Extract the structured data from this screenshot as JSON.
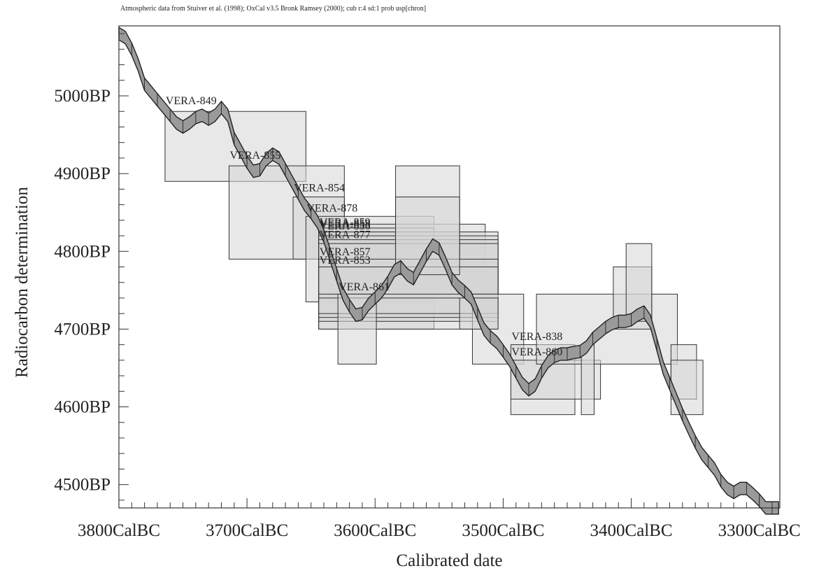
{
  "caption": "Atmospheric data from Stuiver et al. (1998); OxCal v3.5 Bronk Ramsey (2000); cub r:4 sd:1 prob usp[chron]",
  "chart_data": {
    "type": "scatter",
    "title": "",
    "xlabel": "Calibrated date",
    "ylabel": "Radiocarbon determination",
    "xlim": [
      3800,
      3284
    ],
    "ylim": [
      4470,
      5090
    ],
    "x_ticks": [
      {
        "value": 3800,
        "label": "3800CalBC"
      },
      {
        "value": 3700,
        "label": "3700CalBC"
      },
      {
        "value": 3600,
        "label": "3600CalBC"
      },
      {
        "value": 3500,
        "label": "3500CalBC"
      },
      {
        "value": 3400,
        "label": "3400CalBC"
      },
      {
        "value": 3300,
        "label": "3300CalBC"
      }
    ],
    "y_ticks": [
      {
        "value": 5000,
        "label": "5000BP"
      },
      {
        "value": 4900,
        "label": "4900BP"
      },
      {
        "value": 4800,
        "label": "4800BP"
      },
      {
        "value": 4700,
        "label": "4700BP"
      },
      {
        "value": 4600,
        "label": "4600BP"
      },
      {
        "value": 4500,
        "label": "4500BP"
      }
    ],
    "calibration_curve": {
      "x": [
        3800,
        3795,
        3790,
        3785,
        3780,
        3775,
        3770,
        3765,
        3760,
        3755,
        3750,
        3745,
        3740,
        3735,
        3730,
        3725,
        3720,
        3715,
        3710,
        3705,
        3700,
        3695,
        3690,
        3685,
        3680,
        3675,
        3670,
        3665,
        3660,
        3655,
        3650,
        3645,
        3640,
        3635,
        3630,
        3625,
        3620,
        3615,
        3610,
        3605,
        3600,
        3595,
        3590,
        3585,
        3580,
        3575,
        3570,
        3565,
        3560,
        3555,
        3550,
        3545,
        3540,
        3535,
        3530,
        3525,
        3520,
        3515,
        3510,
        3505,
        3500,
        3495,
        3490,
        3485,
        3480,
        3475,
        3470,
        3465,
        3460,
        3455,
        3450,
        3445,
        3440,
        3435,
        3430,
        3425,
        3420,
        3415,
        3410,
        3405,
        3400,
        3395,
        3390,
        3385,
        3380,
        3375,
        3370,
        3365,
        3360,
        3355,
        3350,
        3345,
        3340,
        3335,
        3330,
        3325,
        3320,
        3315,
        3310,
        3305,
        3300,
        3295,
        3290,
        3285
      ],
      "y": [
        5080,
        5075,
        5060,
        5040,
        5015,
        5005,
        4995,
        4985,
        4975,
        4965,
        4960,
        4965,
        4972,
        4975,
        4970,
        4975,
        4985,
        4975,
        4945,
        4930,
        4915,
        4903,
        4905,
        4918,
        4925,
        4920,
        4905,
        4890,
        4875,
        4860,
        4850,
        4838,
        4820,
        4795,
        4770,
        4745,
        4730,
        4718,
        4720,
        4732,
        4740,
        4748,
        4760,
        4775,
        4780,
        4770,
        4765,
        4780,
        4795,
        4808,
        4803,
        4785,
        4765,
        4755,
        4748,
        4740,
        4720,
        4700,
        4690,
        4683,
        4672,
        4660,
        4645,
        4630,
        4622,
        4628,
        4645,
        4658,
        4665,
        4668,
        4668,
        4670,
        4671,
        4677,
        4688,
        4695,
        4702,
        4707,
        4710,
        4710,
        4712,
        4718,
        4722,
        4710,
        4680,
        4650,
        4630,
        4610,
        4590,
        4572,
        4555,
        4540,
        4530,
        4520,
        4505,
        4495,
        4490,
        4495,
        4495,
        4488,
        4480,
        4470,
        4470,
        4470
      ],
      "half_width": 8
    },
    "boxes": [
      {
        "x0": 3764,
        "x1": 3654,
        "y0": 4890,
        "y1": 4980
      },
      {
        "x0": 3714,
        "x1": 3624,
        "y0": 4790,
        "y1": 4910
      },
      {
        "x0": 3664,
        "x1": 3624,
        "y0": 4790,
        "y1": 4870
      },
      {
        "x0": 3654,
        "x1": 3554,
        "y0": 4735,
        "y1": 4845
      },
      {
        "x0": 3644,
        "x1": 3514,
        "y0": 4765,
        "y1": 4835
      },
      {
        "x0": 3644,
        "x1": 3554,
        "y0": 4700,
        "y1": 4830
      },
      {
        "x0": 3644,
        "x1": 3504,
        "y0": 4700,
        "y1": 4825
      },
      {
        "x0": 3644,
        "x1": 3504,
        "y0": 4710,
        "y1": 4820
      },
      {
        "x0": 3644,
        "x1": 3504,
        "y0": 4715,
        "y1": 4815
      },
      {
        "x0": 3644,
        "x1": 3504,
        "y0": 4720,
        "y1": 4810
      },
      {
        "x0": 3644,
        "x1": 3504,
        "y0": 4740,
        "y1": 4790
      },
      {
        "x0": 3644,
        "x1": 3504,
        "y0": 4745,
        "y1": 4780
      },
      {
        "x0": 3629,
        "x1": 3599,
        "y0": 4655,
        "y1": 4745
      },
      {
        "x0": 3584,
        "x1": 3534,
        "y0": 4790,
        "y1": 4910
      },
      {
        "x0": 3584,
        "x1": 3534,
        "y0": 4770,
        "y1": 4870
      },
      {
        "x0": 3524,
        "x1": 3484,
        "y0": 4655,
        "y1": 4745
      },
      {
        "x0": 3534,
        "x1": 3504,
        "y0": 4700,
        "y1": 4740
      },
      {
        "x0": 3494,
        "x1": 3444,
        "y0": 4590,
        "y1": 4680
      },
      {
        "x0": 3494,
        "x1": 3424,
        "y0": 4610,
        "y1": 4660
      },
      {
        "x0": 3474,
        "x1": 3364,
        "y0": 4655,
        "y1": 4745
      },
      {
        "x0": 3439,
        "x1": 3429,
        "y0": 4590,
        "y1": 4680
      },
      {
        "x0": 3414,
        "x1": 3384,
        "y0": 4700,
        "y1": 4780
      },
      {
        "x0": 3404,
        "x1": 3384,
        "y0": 4710,
        "y1": 4810
      },
      {
        "x0": 3369,
        "x1": 3349,
        "y0": 4610,
        "y1": 4680
      },
      {
        "x0": 3369,
        "x1": 3344,
        "y0": 4590,
        "y1": 4660
      }
    ],
    "labels": [
      {
        "text": "VERA-849",
        "x": 3764,
        "y": 4989
      },
      {
        "text": "VERA-855",
        "x": 3714,
        "y": 4919
      },
      {
        "text": "VERA-854",
        "x": 3664,
        "y": 4877
      },
      {
        "text": "VERA-878",
        "x": 3654,
        "y": 4851
      },
      {
        "text": "VERA-859",
        "x": 3644,
        "y": 4833
      },
      {
        "text": "VERA-858",
        "x": 3644,
        "y": 4831
      },
      {
        "text": "VERA-856",
        "x": 3644,
        "y": 4828
      },
      {
        "text": "VERA-877",
        "x": 3644,
        "y": 4817
      },
      {
        "text": "VERA-857",
        "x": 3644,
        "y": 4795
      },
      {
        "text": "VERA-853",
        "x": 3644,
        "y": 4784
      },
      {
        "text": "VERA-861",
        "x": 3629,
        "y": 4750
      },
      {
        "text": "VERA-838",
        "x": 3494,
        "y": 4686
      },
      {
        "text": "VERA-860",
        "x": 3494,
        "y": 4666
      }
    ]
  }
}
